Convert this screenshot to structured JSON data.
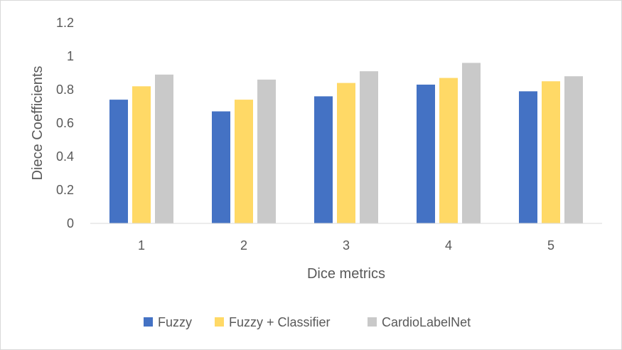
{
  "chart_data": {
    "type": "bar",
    "title": "",
    "xlabel": "Dice metrics",
    "ylabel": "Diece Coefficients",
    "categories": [
      "1",
      "2",
      "3",
      "4",
      "5"
    ],
    "series": [
      {
        "name": "Fuzzy",
        "color": "#4472C4",
        "values": [
          0.74,
          0.67,
          0.76,
          0.83,
          0.79
        ]
      },
      {
        "name": "Fuzzy + Classifier",
        "color": "#FFD966",
        "values": [
          0.82,
          0.74,
          0.84,
          0.87,
          0.85
        ]
      },
      {
        "name": "CardioLabelNet",
        "color": "#C9C9C9",
        "values": [
          0.89,
          0.86,
          0.91,
          0.96,
          0.88
        ]
      }
    ],
    "ylim": [
      0,
      1.2
    ],
    "yticks": [
      "0",
      "0.2",
      "0.4",
      "0.6",
      "0.8",
      "1",
      "1.2"
    ],
    "grid": false,
    "legend_position": "bottom"
  }
}
